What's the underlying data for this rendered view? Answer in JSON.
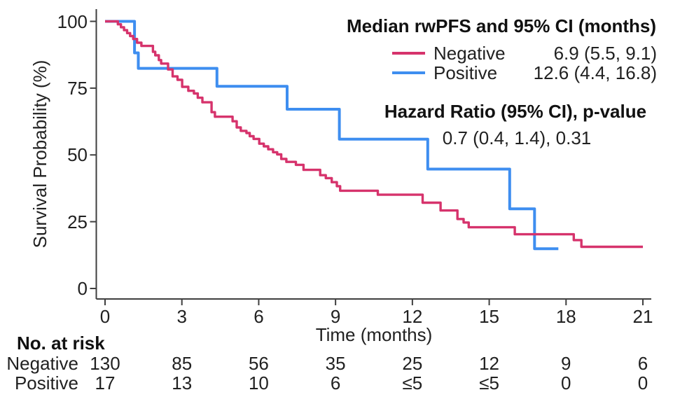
{
  "chart_data": {
    "type": "line",
    "subtype": "kaplan-meier-step",
    "xlabel": "Time (months)",
    "ylabel": "Survival Probability (%)",
    "xlim": [
      0,
      21
    ],
    "ylim": [
      0,
      100
    ],
    "xticks": [
      0,
      3,
      6,
      9,
      12,
      15,
      18,
      21
    ],
    "yticks": [
      100,
      75,
      50,
      25,
      0
    ],
    "grid": false,
    "axis_color": "#3f3f3f",
    "series": [
      {
        "name": "Positive",
        "color": "#3E8EF0",
        "end_time": 17.7,
        "steps": [
          [
            0,
            100
          ],
          [
            1.15,
            88.2
          ],
          [
            1.3,
            82.4
          ],
          [
            4.37,
            75.7
          ],
          [
            7.11,
            67.1
          ],
          [
            9.15,
            55.9
          ],
          [
            12.6,
            44.7
          ],
          [
            15.8,
            29.8
          ],
          [
            16.77,
            14.9
          ]
        ]
      },
      {
        "name": "Negative",
        "color": "#D6336C",
        "end_time": 21,
        "steps": [
          [
            0,
            100
          ],
          [
            0.5,
            98.9
          ],
          [
            0.62,
            97.8
          ],
          [
            0.74,
            96.7
          ],
          [
            0.86,
            95.6
          ],
          [
            0.98,
            94.5
          ],
          [
            1.1,
            93.4
          ],
          [
            1.25,
            92.0
          ],
          [
            1.42,
            90.8
          ],
          [
            1.87,
            88.6
          ],
          [
            1.96,
            87.3
          ],
          [
            2.1,
            85.5
          ],
          [
            2.19,
            84.2
          ],
          [
            2.46,
            82.0
          ],
          [
            2.64,
            79.4
          ],
          [
            2.83,
            78.1
          ],
          [
            3.01,
            75.5
          ],
          [
            3.25,
            74.0
          ],
          [
            3.47,
            73.0
          ],
          [
            3.62,
            71.4
          ],
          [
            3.8,
            69.7
          ],
          [
            4.16,
            66.0
          ],
          [
            4.29,
            64.3
          ],
          [
            4.98,
            62.6
          ],
          [
            5.14,
            60.3
          ],
          [
            5.3,
            59.0
          ],
          [
            5.52,
            58.2
          ],
          [
            5.65,
            57.0
          ],
          [
            5.8,
            56.0
          ],
          [
            6.02,
            54.2
          ],
          [
            6.2,
            53.2
          ],
          [
            6.37,
            52.1
          ],
          [
            6.56,
            51.0
          ],
          [
            6.72,
            50.2
          ],
          [
            6.88,
            48.5
          ],
          [
            7.08,
            47.4
          ],
          [
            7.45,
            46.3
          ],
          [
            7.75,
            44.4
          ],
          [
            8.4,
            42.4
          ],
          [
            8.62,
            41.3
          ],
          [
            8.85,
            39.8
          ],
          [
            9.05,
            38.3
          ],
          [
            9.18,
            36.6
          ],
          [
            10.65,
            35.1
          ],
          [
            12.4,
            32.1
          ],
          [
            13.1,
            29.2
          ],
          [
            13.76,
            26.0
          ],
          [
            14.0,
            24.7
          ],
          [
            14.2,
            22.9
          ],
          [
            16.0,
            20.3
          ],
          [
            18.3,
            18.1
          ],
          [
            18.6,
            15.6
          ]
        ]
      }
    ]
  },
  "legend": {
    "title": "Median rwPFS and 95% CI (months)",
    "entries": [
      {
        "label": "Negative",
        "value": "6.9 (5.5, 9.1)",
        "color": "#D6336C"
      },
      {
        "label": "Positive",
        "value": "12.6 (4.4, 16.8)",
        "color": "#3E8EF0"
      }
    ]
  },
  "annotations": {
    "hazard_title": "Hazard Ratio (95% CI), p-value",
    "hazard_value": "0.7 (0.4, 1.4), 0.31"
  },
  "risk_table": {
    "title": "No. at risk",
    "times": [
      0,
      3,
      6,
      9,
      12,
      15,
      18,
      21
    ],
    "rows": [
      {
        "label": "Negative",
        "counts": [
          "130",
          "85",
          "56",
          "35",
          "25",
          "12",
          "9",
          "6"
        ]
      },
      {
        "label": "Positive",
        "counts": [
          "17",
          "13",
          "10",
          "6",
          "≤5",
          "≤5",
          "0",
          "0"
        ]
      }
    ]
  }
}
